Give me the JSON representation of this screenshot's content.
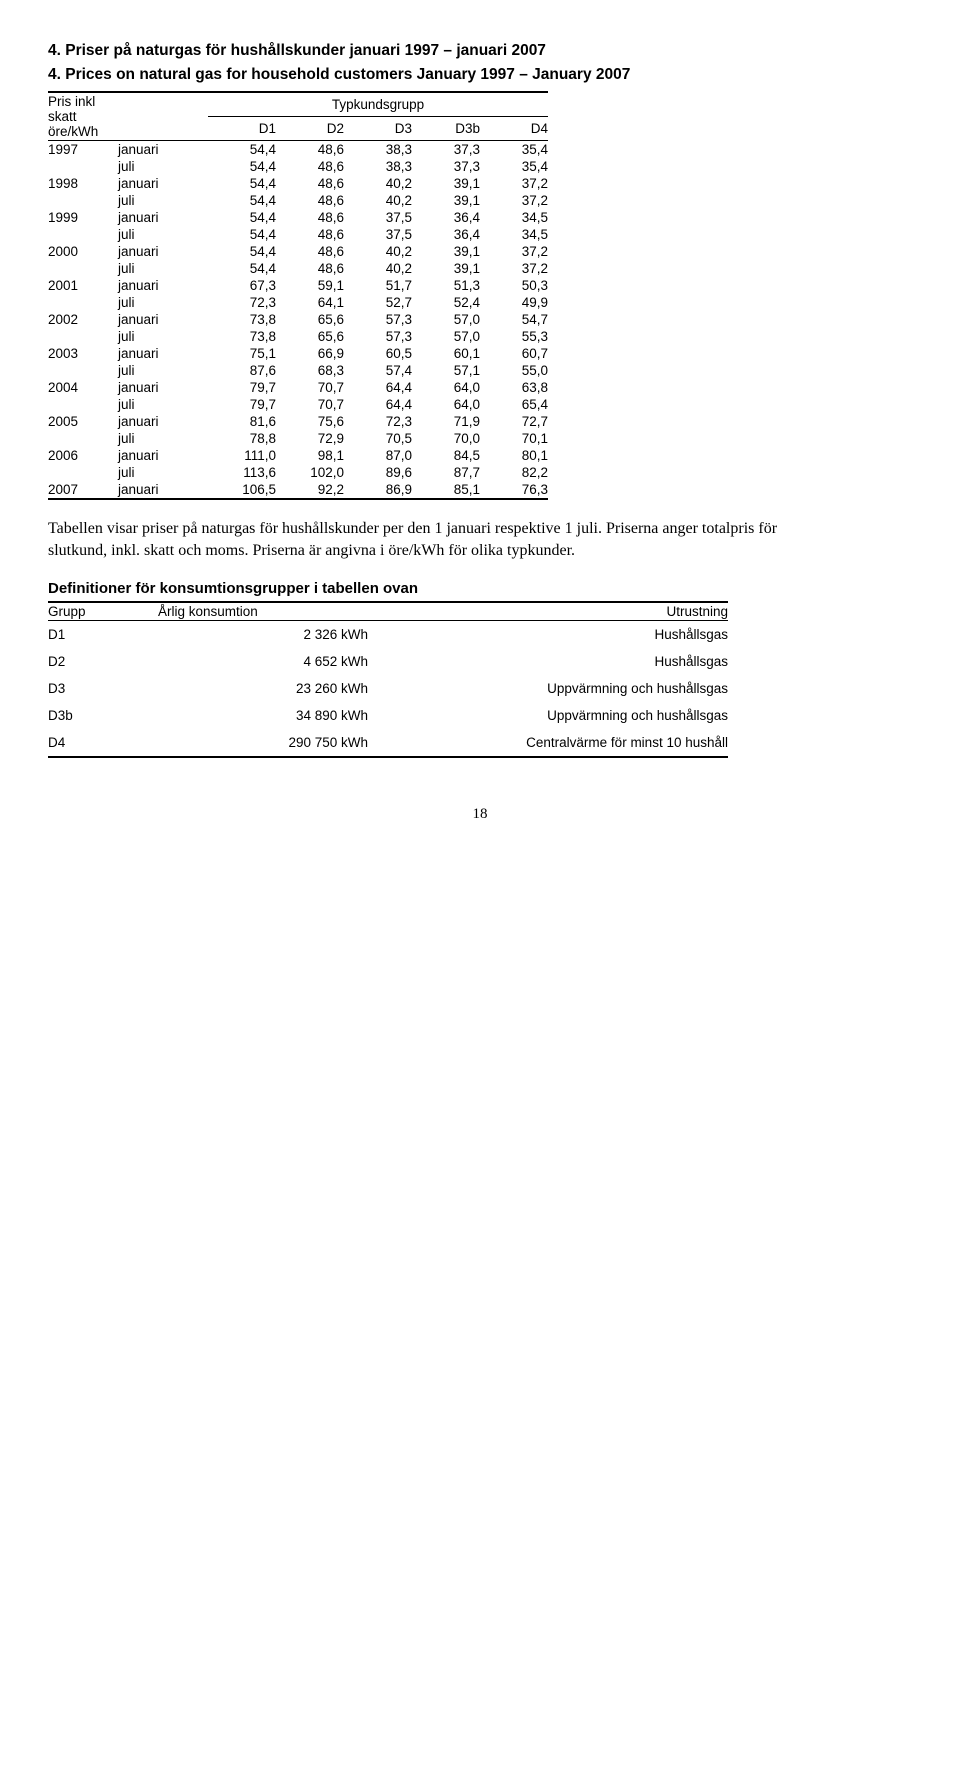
{
  "title_line1": "4. Priser på naturgas för hushållskunder januari 1997 – januari 2007",
  "title_line2": "4. Prices on natural gas for household customers January 1997 – January 2007",
  "table1": {
    "left_header_1": "Pris inkl skatt",
    "left_header_2": "öre/kWh",
    "group_header": "Typkundsgrupp",
    "cols": [
      "D1",
      "D2",
      "D3",
      "D3b",
      "D4"
    ],
    "rows": [
      {
        "year": "1997",
        "month": "januari",
        "v": [
          "54,4",
          "48,6",
          "38,3",
          "37,3",
          "35,4"
        ]
      },
      {
        "year": "",
        "month": "juli",
        "v": [
          "54,4",
          "48,6",
          "38,3",
          "37,3",
          "35,4"
        ]
      },
      {
        "year": "1998",
        "month": "januari",
        "v": [
          "54,4",
          "48,6",
          "40,2",
          "39,1",
          "37,2"
        ]
      },
      {
        "year": "",
        "month": "juli",
        "v": [
          "54,4",
          "48,6",
          "40,2",
          "39,1",
          "37,2"
        ]
      },
      {
        "year": "1999",
        "month": "januari",
        "v": [
          "54,4",
          "48,6",
          "37,5",
          "36,4",
          "34,5"
        ]
      },
      {
        "year": "",
        "month": "juli",
        "v": [
          "54,4",
          "48,6",
          "37,5",
          "36,4",
          "34,5"
        ]
      },
      {
        "year": "2000",
        "month": "januari",
        "v": [
          "54,4",
          "48,6",
          "40,2",
          "39,1",
          "37,2"
        ]
      },
      {
        "year": "",
        "month": "juli",
        "v": [
          "54,4",
          "48,6",
          "40,2",
          "39,1",
          "37,2"
        ]
      },
      {
        "year": "2001",
        "month": "januari",
        "v": [
          "67,3",
          "59,1",
          "51,7",
          "51,3",
          "50,3"
        ]
      },
      {
        "year": "",
        "month": "juli",
        "v": [
          "72,3",
          "64,1",
          "52,7",
          "52,4",
          "49,9"
        ]
      },
      {
        "year": "2002",
        "month": "januari",
        "v": [
          "73,8",
          "65,6",
          "57,3",
          "57,0",
          "54,7"
        ]
      },
      {
        "year": "",
        "month": "juli",
        "v": [
          "73,8",
          "65,6",
          "57,3",
          "57,0",
          "55,3"
        ]
      },
      {
        "year": "2003",
        "month": "januari",
        "v": [
          "75,1",
          "66,9",
          "60,5",
          "60,1",
          "60,7"
        ]
      },
      {
        "year": "",
        "month": "juli",
        "v": [
          "87,6",
          "68,3",
          "57,4",
          "57,1",
          "55,0"
        ]
      },
      {
        "year": "2004",
        "month": "januari",
        "v": [
          "79,7",
          "70,7",
          "64,4",
          "64,0",
          "63,8"
        ]
      },
      {
        "year": "",
        "month": "juli",
        "v": [
          "79,7",
          "70,7",
          "64,4",
          "64,0",
          "65,4"
        ]
      },
      {
        "year": "2005",
        "month": "januari",
        "v": [
          "81,6",
          "75,6",
          "72,3",
          "71,9",
          "72,7"
        ]
      },
      {
        "year": "",
        "month": "juli",
        "v": [
          "78,8",
          "72,9",
          "70,5",
          "70,0",
          "70,1"
        ]
      },
      {
        "year": "2006",
        "month": "januari",
        "v": [
          "111,0",
          "98,1",
          "87,0",
          "84,5",
          "80,1"
        ]
      },
      {
        "year": "",
        "month": "juli",
        "v": [
          "113,6",
          "102,0",
          "89,6",
          "87,7",
          "82,2"
        ]
      },
      {
        "year": "2007",
        "month": "januari",
        "v": [
          "106,5",
          "92,2",
          "86,9",
          "85,1",
          "76,3"
        ]
      }
    ]
  },
  "paragraph": "Tabellen visar priser på naturgas för hushållskunder per den 1 januari respektive 1 juli. Priserna anger totalpris för slutkund, inkl. skatt och moms. Priserna är angivna i öre/kWh för olika typkunder.",
  "defs_heading": "Definitioner för konsumtionsgrupper i tabellen ovan",
  "table2": {
    "headers": {
      "g": "Grupp",
      "k": "Årlig konsumtion",
      "u": "Utrustning"
    },
    "rows": [
      {
        "g": "D1",
        "k": "2 326 kWh",
        "u": "Hushållsgas"
      },
      {
        "g": "D2",
        "k": "4 652 kWh",
        "u": "Hushållsgas"
      },
      {
        "g": "D3",
        "k": "23 260 kWh",
        "u": "Uppvärmning och hushållsgas"
      },
      {
        "g": "D3b",
        "k": "34 890 kWh",
        "u": "Uppvärmning och hushållsgas"
      },
      {
        "g": "D4",
        "k": "290 750 kWh",
        "u": "Centralvärme för minst 10 hushåll"
      }
    ]
  },
  "page_number": "18"
}
